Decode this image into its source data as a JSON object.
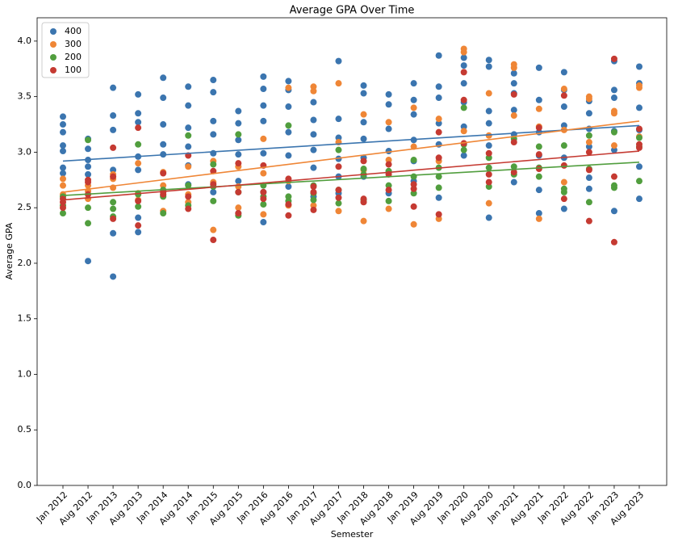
{
  "chart_data": {
    "type": "scatter",
    "title": "Average GPA Over Time",
    "x_label": "Semester",
    "y_label": "Average GPA",
    "categories": [
      "Jan 2012",
      "Aug 2012",
      "Jan 2013",
      "Aug 2013",
      "Jan 2014",
      "Aug 2014",
      "Jan 2015",
      "Aug 2015",
      "Jan 2016",
      "Aug 2016",
      "Jan 2017",
      "Aug 2017",
      "Jan 2018",
      "Aug 2018",
      "Jan 2019",
      "Aug 2019",
      "Jan 2020",
      "Aug 2020",
      "Jan 2021",
      "Aug 2021",
      "Jan 2022",
      "Aug 2022",
      "Jan 2023",
      "Aug 2023"
    ],
    "ylim": [
      0,
      4.21
    ],
    "yticks": [
      {
        "value": 0,
        "label": "0.0"
      },
      0.5,
      {
        "value": 1,
        "label": "1.0"
      },
      1.5,
      {
        "value": 2,
        "label": "2.0"
      },
      2.5,
      {
        "value": 3,
        "label": "3.0"
      },
      3.5,
      {
        "value": 4,
        "label": "4.0"
      }
    ],
    "legend": "upper left",
    "series": [
      {
        "name": "400",
        "color": "#3b75af",
        "trend": [
          2.92,
          3.24
        ],
        "values": [
          [
            3.32,
            3.25,
            3.18,
            3.06,
            2.86,
            2.81,
            3.01
          ],
          [
            3.12,
            3.03,
            2.93,
            2.87,
            2.8,
            2.02
          ],
          [
            3.58,
            3.33,
            3.2,
            2.84,
            2.27,
            1.88
          ],
          [
            3.52,
            3.35,
            3.27,
            2.96,
            2.84,
            2.41,
            2.28
          ],
          [
            3.67,
            3.49,
            3.25,
            3.07,
            2.98,
            2.61
          ],
          [
            3.59,
            3.42,
            3.22,
            3.05,
            2.88,
            2.71
          ],
          [
            3.65,
            3.54,
            3.28,
            3.16,
            2.99,
            2.64
          ],
          [
            3.37,
            3.26,
            3.11,
            2.98,
            2.74,
            2.45
          ],
          [
            3.68,
            3.57,
            3.42,
            3.28,
            2.99,
            2.64,
            2.37
          ],
          [
            3.64,
            3.56,
            3.41,
            3.18,
            2.97,
            2.69
          ],
          [
            3.45,
            3.29,
            3.16,
            3.02,
            2.86,
            2.6
          ],
          [
            3.82,
            3.3,
            3.13,
            2.94,
            2.78,
            2.63
          ],
          [
            3.6,
            3.53,
            3.27,
            3.12,
            2.95,
            2.78
          ],
          [
            3.52,
            3.43,
            3.21,
            3.01,
            2.82,
            2.63
          ],
          [
            3.62,
            3.47,
            3.34,
            3.11,
            2.92,
            2.74
          ],
          [
            3.87,
            3.59,
            3.49,
            3.26,
            3.07,
            2.59
          ],
          [
            3.85,
            3.78,
            3.62,
            3.45,
            3.23,
            2.97
          ],
          [
            3.83,
            3.77,
            3.37,
            3.26,
            3.06,
            2.41
          ],
          [
            3.71,
            3.62,
            3.53,
            3.38,
            3.16,
            2.73
          ],
          [
            3.76,
            3.47,
            3.18,
            2.97,
            2.66,
            2.45
          ],
          [
            3.72,
            3.56,
            3.41,
            3.24,
            2.95,
            2.49
          ],
          [
            3.46,
            3.35,
            3.21,
            3.05,
            2.77,
            2.67
          ],
          [
            3.82,
            3.56,
            3.49,
            3.19,
            3.02,
            2.47
          ],
          [
            3.77,
            3.62,
            3.4,
            3.2,
            2.87,
            2.58
          ]
        ]
      },
      {
        "name": "300",
        "color": "#ef8636",
        "trend": [
          2.64,
          3.28
        ],
        "values": [
          [
            2.76,
            2.62,
            2.7
          ],
          [
            2.7,
            2.65,
            2.58
          ],
          [
            2.8,
            2.68,
            2.76
          ],
          [
            2.9,
            2.63,
            2.57
          ],
          [
            2.82,
            2.47,
            2.7
          ],
          [
            2.87,
            2.62,
            2.55
          ],
          [
            2.92,
            2.3,
            2.73
          ],
          [
            2.5,
            2.87,
            2.69
          ],
          [
            3.12,
            2.44,
            2.81
          ],
          [
            3.58,
            2.74,
            2.52
          ],
          [
            3.59,
            3.55,
            2.52
          ],
          [
            3.62,
            2.47,
            3.09
          ],
          [
            3.34,
            2.38,
            2.84
          ],
          [
            3.27,
            2.49,
            2.93
          ],
          [
            3.4,
            2.35,
            3.05
          ],
          [
            3.3,
            2.4,
            2.92
          ],
          [
            3.93,
            3.9,
            3.19
          ],
          [
            3.53,
            2.54,
            3.15
          ],
          [
            3.79,
            3.76,
            3.33
          ],
          [
            3.39,
            2.4,
            3.23
          ],
          [
            3.57,
            2.73,
            3.2
          ],
          [
            3.5,
            3.48,
            3.09
          ],
          [
            3.37,
            3.35,
            3.06
          ],
          [
            3.58,
            3.6,
            3.14
          ]
        ]
      },
      {
        "name": "200",
        "color": "#519e3e",
        "trend": [
          2.61,
          2.91
        ],
        "values": [
          [
            2.45,
            2.6,
            2.52
          ],
          [
            3.11,
            2.5,
            2.36
          ],
          [
            2.55,
            2.49,
            2.42
          ],
          [
            3.07,
            2.51,
            2.62
          ],
          [
            2.45,
            2.6,
            2.66
          ],
          [
            3.15,
            2.7,
            2.52
          ],
          [
            2.56,
            2.89,
            2.69
          ],
          [
            3.16,
            2.43,
            2.64
          ],
          [
            2.53,
            2.7,
            2.6
          ],
          [
            3.24,
            2.6,
            2.56
          ],
          [
            2.7,
            2.63,
            2.57
          ],
          [
            3.02,
            2.54,
            2.66
          ],
          [
            2.57,
            2.85,
            2.8
          ],
          [
            2.56,
            2.7,
            2.83
          ],
          [
            2.93,
            2.63,
            2.78
          ],
          [
            2.78,
            2.86,
            2.68
          ],
          [
            3.07,
            3.02,
            3.4
          ],
          [
            2.69,
            2.95,
            2.86
          ],
          [
            3.12,
            2.87,
            2.8
          ],
          [
            2.78,
            3.05,
            2.86
          ],
          [
            2.64,
            2.67,
            3.06
          ],
          [
            2.55,
            2.85,
            3.15
          ],
          [
            3.18,
            2.7,
            2.68
          ],
          [
            3.05,
            2.74,
            3.13
          ]
        ]
      },
      {
        "name": "100",
        "color": "#c53a32",
        "trend": [
          2.57,
          3.01
        ],
        "values": [
          [
            2.55,
            2.5,
            2.58
          ],
          [
            2.75,
            2.73,
            2.62
          ],
          [
            3.04,
            2.78,
            2.4
          ],
          [
            3.22,
            2.56,
            2.34
          ],
          [
            2.81,
            2.62,
            2.64
          ],
          [
            2.97,
            2.6,
            2.49
          ],
          [
            2.21,
            2.71,
            2.83
          ],
          [
            2.9,
            2.64,
            2.45
          ],
          [
            2.88,
            2.64,
            2.58
          ],
          [
            2.76,
            2.43,
            2.53
          ],
          [
            2.64,
            2.48,
            2.69
          ],
          [
            2.87,
            2.59,
            2.66
          ],
          [
            2.58,
            2.55,
            2.92
          ],
          [
            2.89,
            2.8,
            2.66
          ],
          [
            2.71,
            2.51,
            2.67
          ],
          [
            3.18,
            2.44,
            2.95
          ],
          [
            3.72,
            3.47,
            3.08
          ],
          [
            2.99,
            2.8,
            2.73
          ],
          [
            3.52,
            3.09,
            2.82
          ],
          [
            3.22,
            2.85,
            2.98
          ],
          [
            3.51,
            2.58,
            2.88
          ],
          [
            2.38,
            2.84,
            3.0
          ],
          [
            3.84,
            2.19,
            2.78
          ],
          [
            3.21,
            3.07,
            3.04
          ]
        ]
      }
    ]
  }
}
